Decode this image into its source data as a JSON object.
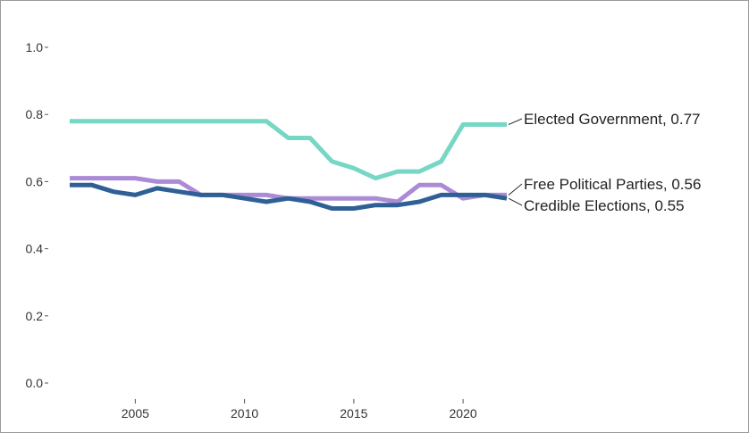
{
  "chart_data": {
    "type": "line",
    "title": "",
    "xlabel": "",
    "ylabel": "",
    "xlim": [
      2002,
      2022
    ],
    "ylim": [
      0,
      1
    ],
    "x": [
      2002,
      2003,
      2004,
      2005,
      2006,
      2007,
      2008,
      2009,
      2010,
      2011,
      2012,
      2013,
      2014,
      2015,
      2016,
      2017,
      2018,
      2019,
      2020,
      2021,
      2022
    ],
    "x_ticks": [
      2005,
      2010,
      2015,
      2020
    ],
    "y_ticks": [
      0.0,
      0.2,
      0.4,
      0.6,
      0.8,
      1.0
    ],
    "y_tick_labels": [
      "0.0",
      "0.2",
      "0.4",
      "0.6",
      "0.8",
      "1.0"
    ],
    "grid": false,
    "legend": "none (direct labels at line ends)",
    "series": [
      {
        "name": "Elected Government",
        "label": "Elected Government, 0.77",
        "color": "#76d7c4",
        "values": [
          0.78,
          0.78,
          0.78,
          0.78,
          0.78,
          0.78,
          0.78,
          0.78,
          0.78,
          0.78,
          0.73,
          0.73,
          0.66,
          0.64,
          0.61,
          0.63,
          0.63,
          0.66,
          0.77,
          0.77,
          0.77
        ]
      },
      {
        "name": "Free Political Parties",
        "label": "Free Political Parties, 0.56",
        "color": "#ab8bd6",
        "values": [
          0.61,
          0.61,
          0.61,
          0.61,
          0.6,
          0.6,
          0.56,
          0.56,
          0.56,
          0.56,
          0.55,
          0.55,
          0.55,
          0.55,
          0.55,
          0.54,
          0.59,
          0.59,
          0.55,
          0.56,
          0.56
        ]
      },
      {
        "name": "Credible Elections",
        "label": "Credible Elections, 0.55",
        "color": "#2e6096",
        "values": [
          0.59,
          0.59,
          0.57,
          0.56,
          0.58,
          0.57,
          0.56,
          0.56,
          0.55,
          0.54,
          0.55,
          0.54,
          0.52,
          0.52,
          0.53,
          0.53,
          0.54,
          0.56,
          0.56,
          0.56,
          0.55
        ]
      }
    ]
  }
}
